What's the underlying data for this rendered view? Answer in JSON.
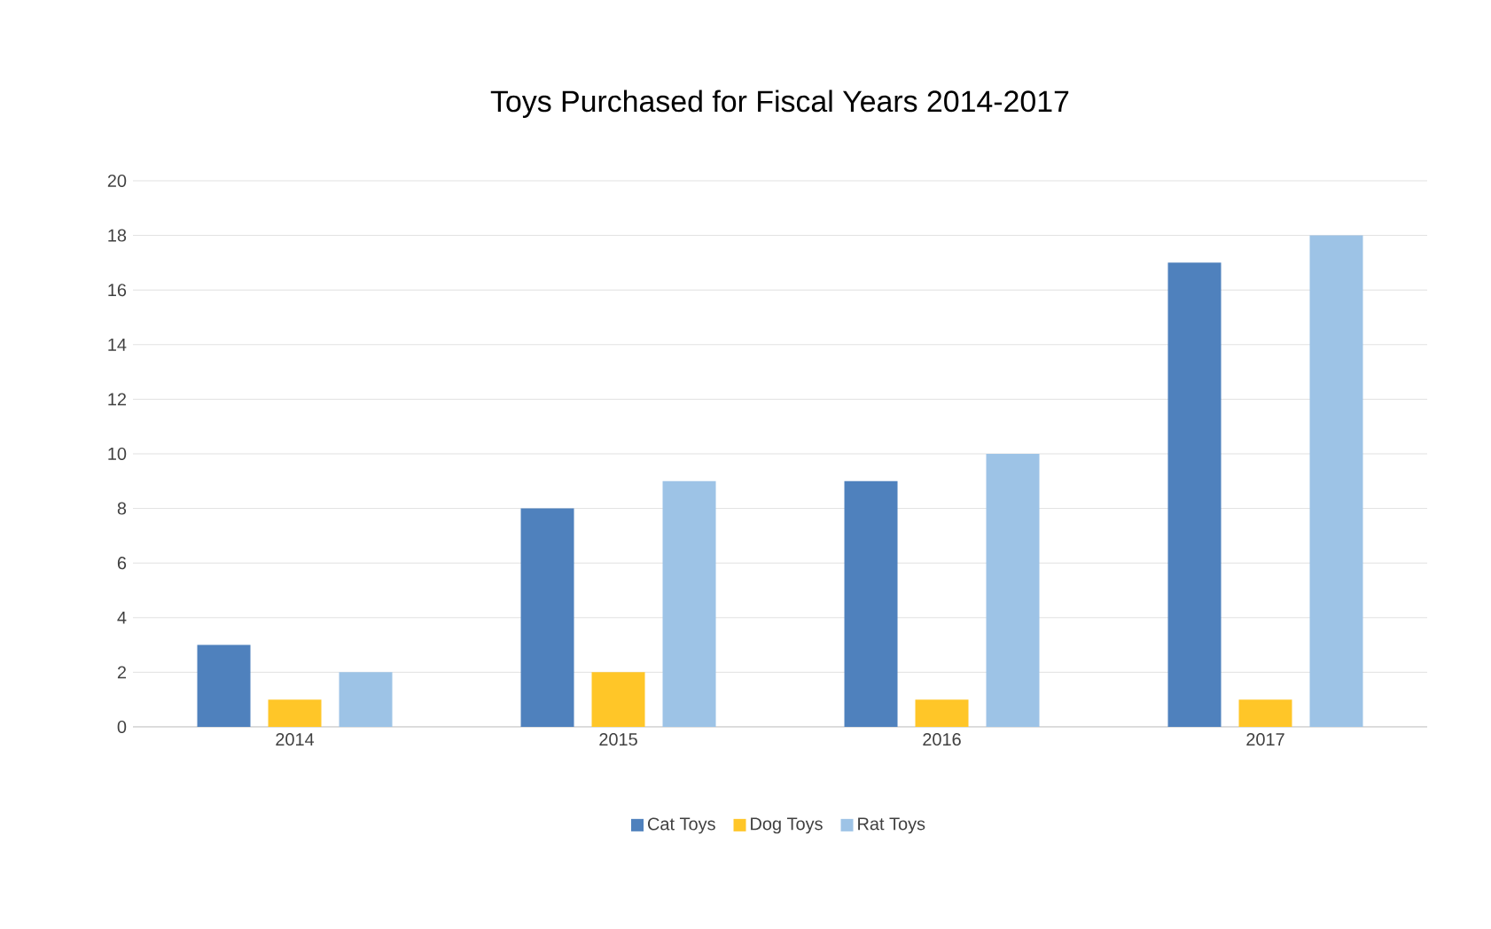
{
  "chart_data": {
    "type": "bar",
    "title": "Toys Purchased for Fiscal Years 2014-2017",
    "categories": [
      "2014",
      "2015",
      "2016",
      "2017"
    ],
    "series": [
      {
        "name": "Cat Toys",
        "color": "#4f81bd",
        "values": [
          3,
          8,
          9,
          17
        ]
      },
      {
        "name": "Dog Toys",
        "color": "#ffc628",
        "values": [
          1,
          2,
          1,
          1
        ]
      },
      {
        "name": "Rat Toys",
        "color": "#9dc3e6",
        "values": [
          2,
          9,
          10,
          18
        ]
      }
    ],
    "ylim": [
      0,
      20
    ],
    "yticks": [
      0,
      2,
      4,
      6,
      8,
      10,
      12,
      14,
      16,
      18,
      20
    ],
    "grid": "y",
    "legend": "bottom"
  }
}
